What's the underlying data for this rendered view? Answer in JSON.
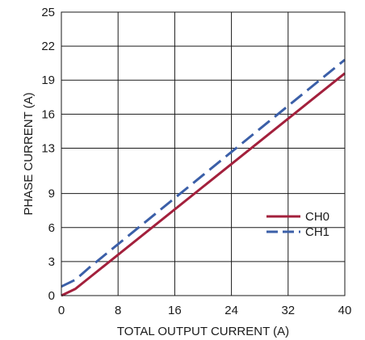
{
  "chart_data": {
    "type": "line",
    "title": "",
    "xlabel": "TOTAL OUTPUT CURRENT (A)",
    "ylabel": "PHASE CURRENT  (A)",
    "xlim": [
      0,
      40
    ],
    "ylim": [
      0,
      25
    ],
    "x_ticks": [
      0,
      8,
      16,
      24,
      32,
      40
    ],
    "y_ticks": [
      0,
      3,
      6,
      9,
      13,
      16,
      19,
      22,
      25
    ],
    "x_tick_labels": [
      "0",
      "8",
      "16",
      "24",
      "32",
      "40"
    ],
    "y_tick_labels": [
      "0",
      "3",
      "6",
      "9",
      "13",
      "16",
      "19",
      "22",
      "25"
    ],
    "grid": true,
    "legend_position": "lower-right",
    "series": [
      {
        "name": "CH0",
        "color": "#a3203c",
        "style": "solid",
        "points": [
          [
            0,
            0
          ],
          [
            2,
            0.6
          ],
          [
            4,
            1.6
          ],
          [
            40,
            19.6
          ]
        ]
      },
      {
        "name": "CH1",
        "color": "#3b5fa8",
        "style": "dashed",
        "points": [
          [
            0,
            0.8
          ],
          [
            2,
            1.4
          ],
          [
            4,
            2.5
          ],
          [
            40,
            20.8
          ]
        ]
      }
    ]
  }
}
